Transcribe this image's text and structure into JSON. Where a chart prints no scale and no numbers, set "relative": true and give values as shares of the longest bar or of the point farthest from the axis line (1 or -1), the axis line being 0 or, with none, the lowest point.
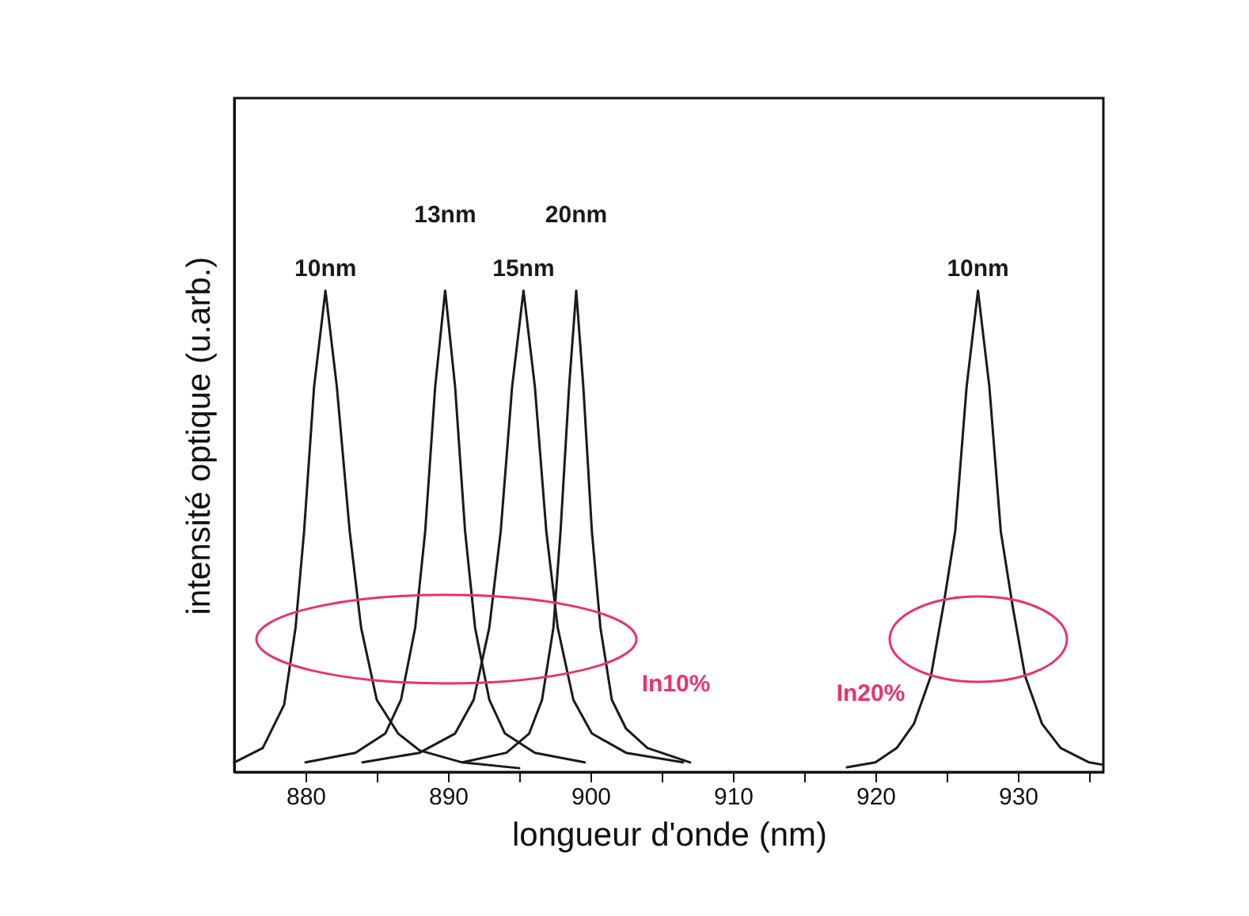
{
  "chart_data": {
    "type": "line",
    "relative": true,
    "xlabel": "longueur d'onde (nm)",
    "ylabel": "intensité optique (u.arb.)",
    "xlim": [
      875,
      936
    ],
    "xticks": [
      880,
      {
        "value": 885,
        "label": null
      },
      890,
      {
        "value": 895,
        "label": null
      },
      900,
      {
        "value": 905,
        "label": null
      },
      910,
      {
        "value": 915,
        "label": null
      },
      920,
      {
        "value": 925,
        "label": null
      },
      930,
      {
        "value": 935,
        "label": null
      }
    ],
    "grid": false,
    "legend": false,
    "marker": "none",
    "line_style": "solid",
    "series": [
      {
        "color": "#1a1a1a",
        "x": [
          875,
          877,
          878.5,
          879.3,
          879.9,
          880.6,
          881.4,
          882.2,
          883.1,
          883.9,
          885,
          886.5,
          888,
          891,
          895
        ],
        "values": [
          0.02,
          0.05,
          0.14,
          0.3,
          0.5,
          0.8,
          1,
          0.8,
          0.5,
          0.3,
          0.15,
          0.08,
          0.045,
          0.02,
          0.008
        ]
      },
      {
        "color": "#1a1a1a",
        "x": [
          880,
          883.5,
          885.6,
          886.7,
          887.7,
          888.4,
          889.1,
          889.8,
          890.5,
          891.2,
          891.9,
          892.9,
          894,
          896.1,
          899.6
        ],
        "values": [
          0.02,
          0.04,
          0.08,
          0.15,
          0.3,
          0.5,
          0.8,
          1,
          0.8,
          0.5,
          0.3,
          0.15,
          0.08,
          0.04,
          0.02
        ]
      },
      {
        "color": "#1a1a1a",
        "x": [
          884,
          888,
          890.5,
          891.8,
          892.9,
          893.7,
          894.5,
          895.3,
          896.1,
          896.9,
          897.7,
          898.8,
          900.1,
          902.5,
          906.5
        ],
        "values": [
          0.02,
          0.04,
          0.08,
          0.15,
          0.3,
          0.5,
          0.8,
          1,
          0.8,
          0.5,
          0.3,
          0.15,
          0.08,
          0.04,
          0.02
        ]
      },
      {
        "color": "#1a1a1a",
        "x": [
          891,
          894.1,
          895.7,
          896.6,
          897.4,
          897.9,
          898.5,
          899,
          899.5,
          900.1,
          900.7,
          901.5,
          902.5,
          904,
          907
        ],
        "values": [
          0.02,
          0.04,
          0.08,
          0.15,
          0.3,
          0.5,
          0.8,
          1,
          0.8,
          0.5,
          0.3,
          0.15,
          0.09,
          0.05,
          0.02
        ]
      },
      {
        "color": "#1a1a1a",
        "x": [
          918,
          920,
          921.5,
          922.7,
          923.9,
          924.8,
          925.6,
          926.4,
          927.2,
          928,
          928.8,
          929.6,
          930.5,
          931.7,
          933,
          935,
          936
        ],
        "values": [
          0.01,
          0.02,
          0.05,
          0.1,
          0.2,
          0.35,
          0.5,
          0.8,
          1,
          0.8,
          0.5,
          0.35,
          0.2,
          0.1,
          0.05,
          0.02,
          0.015
        ]
      }
    ],
    "annotations": [
      {
        "text": "10nm",
        "x": 881.4,
        "y": 1
      },
      {
        "text": "13nm",
        "x": 889.8,
        "y": 1
      },
      {
        "text": "15nm",
        "x": 895.3,
        "y": 1
      },
      {
        "text": "20nm",
        "x": 899,
        "y": 1
      },
      {
        "text": "10nm",
        "x": 927.2,
        "y": 1
      },
      "In10%",
      "In20%"
    ]
  }
}
